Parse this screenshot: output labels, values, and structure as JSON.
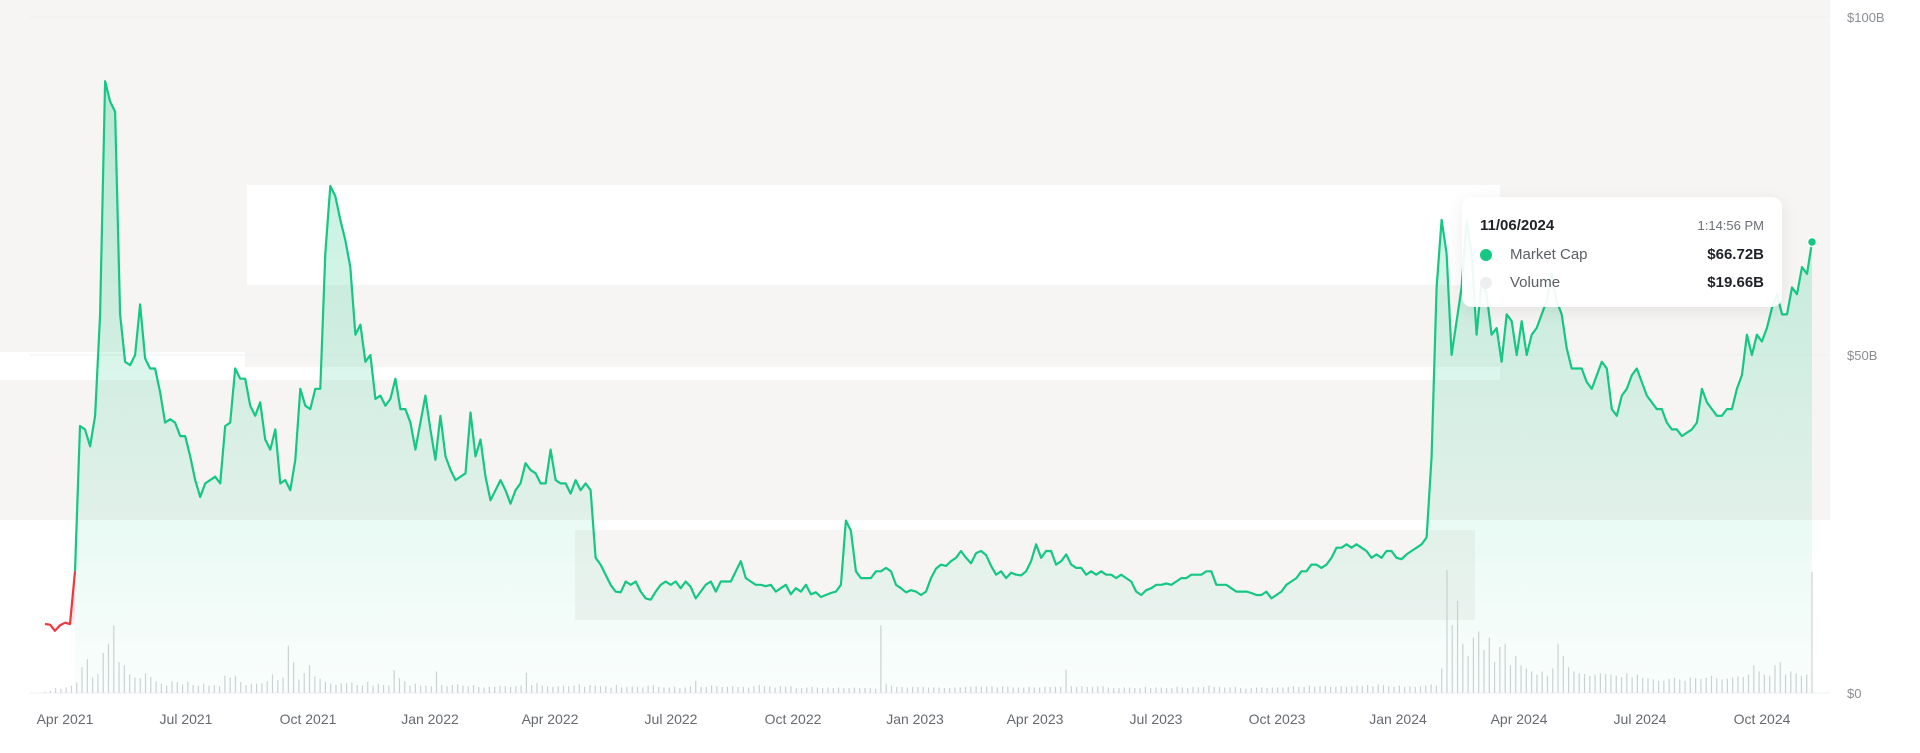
{
  "colors": {
    "market_cap": "#16c784",
    "below_start": "#ea3943",
    "volume": "#cfd2d6",
    "grid": "#eeeff1",
    "band": "#f6f5f4"
  },
  "tooltip": {
    "date": "11/06/2024",
    "time": "1:14:56 PM",
    "rows": [
      {
        "label": "Market Cap",
        "value": "$66.72B",
        "icon": "green-dot-icon"
      },
      {
        "label": "Volume",
        "value": "$19.66B",
        "icon": "grey-dot-icon"
      }
    ]
  },
  "chart_data": {
    "type": "area",
    "y_axis": {
      "ticks": [
        "$100B",
        "$50B",
        "$0"
      ],
      "ylim": [
        0,
        100
      ],
      "unit": "B USD",
      "position": "right"
    },
    "x_axis": {
      "ticks": [
        "Apr 2021",
        "Jul 2021",
        "Oct 2021",
        "Jan 2022",
        "Apr 2022",
        "Jul 2022",
        "Oct 2022",
        "Jan 2023",
        "Apr 2023",
        "Jul 2023",
        "Oct 2023",
        "Jan 2024",
        "Apr 2024",
        "Jul 2024",
        "Oct 2024"
      ]
    },
    "series": [
      {
        "name": "Market Cap",
        "values_B": [
          10.2,
          10.1,
          9.2,
          10.0,
          10.4,
          10.2,
          18,
          39.5,
          39,
          36.5,
          41,
          56,
          90.5,
          87.5,
          86,
          56,
          49,
          48.5,
          50,
          57.5,
          49.5,
          48,
          48,
          44.5,
          40,
          40.5,
          40,
          38,
          38,
          35,
          31.5,
          29,
          31,
          31.5,
          32,
          31,
          39.5,
          40,
          48,
          46.5,
          46.5,
          42.5,
          41,
          43,
          37.5,
          36,
          39,
          31,
          31.5,
          30,
          34.5,
          45,
          42.5,
          42,
          45,
          45,
          65,
          75,
          73.5,
          70,
          67,
          63,
          53,
          54.5,
          49,
          50,
          43.5,
          44,
          42.5,
          43.5,
          46.5,
          42,
          42,
          40,
          36,
          40,
          44,
          39,
          34.5,
          41,
          35,
          33,
          31.5,
          32,
          32.5,
          41.5,
          35,
          37.5,
          32,
          28.5,
          30,
          31.5,
          30,
          28,
          30,
          31,
          34,
          33,
          32.5,
          31,
          31,
          36,
          31.5,
          31,
          31,
          29.5,
          31.5,
          30,
          31,
          30,
          20,
          19,
          17.5,
          16,
          15,
          14.9,
          16.5,
          16,
          16.5,
          15,
          14,
          13.8,
          15,
          16,
          16.5,
          16,
          16.5,
          15.5,
          16.5,
          15.7,
          14,
          15,
          16,
          16.5,
          15,
          16.5,
          16.5,
          16.5,
          18,
          19.5,
          17,
          16.5,
          16,
          16,
          15.8,
          16,
          15,
          15.5,
          16,
          14.6,
          15.5,
          15,
          16,
          14.6,
          14.9,
          14.2,
          14.5,
          14.8,
          15,
          16,
          25.5,
          24,
          18,
          17,
          17,
          17,
          18,
          18,
          18.5,
          18,
          16,
          15.5,
          14.9,
          15.2,
          15,
          14.5,
          15,
          17,
          18.4,
          19,
          18.8,
          19.5,
          20,
          21,
          20,
          19.2,
          20.7,
          21,
          20.4,
          18.8,
          17.5,
          18,
          17,
          17.8,
          17.5,
          17.4,
          18,
          19.5,
          22,
          20,
          21,
          21,
          19,
          19.5,
          20.5,
          19,
          18.5,
          18.5,
          17.5,
          18,
          17.5,
          18,
          17.5,
          17.5,
          17,
          17.5,
          17,
          16.5,
          15,
          14.5,
          15.2,
          15.5,
          16,
          16,
          16.2,
          16,
          16.5,
          17,
          17,
          17.5,
          17.5,
          17.5,
          18,
          18,
          16,
          16,
          16,
          15.5,
          15,
          15,
          15,
          14.8,
          14.5,
          14.5,
          15,
          14,
          14.5,
          15,
          16,
          16.5,
          17,
          18,
          18,
          19,
          19,
          18.5,
          19,
          20,
          21.5,
          21.5,
          22,
          21.5,
          22,
          21.5,
          21,
          20,
          20.5,
          20,
          21,
          21,
          20,
          19.8,
          20.5,
          21,
          21.5,
          22,
          23,
          35,
          60,
          70,
          65,
          50,
          55,
          60,
          70,
          65,
          53,
          61,
          59,
          53,
          54,
          49,
          56,
          55,
          50,
          55,
          50,
          53,
          54,
          56,
          58,
          62,
          58,
          56,
          51,
          48,
          48,
          48,
          46,
          45,
          47,
          49,
          48,
          42,
          41,
          44,
          45,
          47,
          48,
          46,
          44,
          43,
          42,
          42,
          40,
          39,
          39,
          38,
          38.5,
          39,
          40,
          45,
          43,
          42,
          41,
          41,
          42,
          42,
          45,
          47,
          53,
          50,
          53,
          52,
          54,
          57,
          59,
          56,
          56,
          60,
          59,
          63,
          62,
          66.72
        ],
        "color": "#16c784"
      },
      {
        "name": "Volume",
        "bars_B": [
          0.2,
          0.4,
          0.8,
          0.7,
          0.9,
          1.2,
          1.7,
          4.2,
          5.5,
          2.5,
          3.1,
          6.5,
          8,
          11,
          5,
          4.5,
          3,
          2.5,
          2.4,
          3.2,
          2.6,
          1.9,
          1.5,
          1.2,
          1.9,
          1.8,
          1.4,
          1.8,
          1.3,
          1.2,
          1.5,
          1.2,
          1.3,
          1.1,
          2.8,
          2.5,
          2.8,
          1.8,
          1.3,
          1.5,
          1.5,
          1.6,
          1.9,
          3.0,
          2.1,
          2.5,
          7.7,
          5.0,
          2.2,
          3.2,
          4.5,
          2.7,
          2.3,
          1.8,
          1.5,
          1.3,
          1.6,
          1.6,
          1.7,
          1.3,
          1.2,
          1.8,
          1.2,
          1.5,
          1.3,
          1.2,
          3.7,
          2.4,
          1.9,
          1.2,
          1.5,
          1.2,
          1.2,
          1.1,
          3.5,
          1.3,
          1.1,
          1.3,
          1.4,
          1.2,
          1.1,
          1.3,
          1.0,
          0.9,
          1.0,
          1.0,
          1.2,
          1.1,
          1.0,
          1.1,
          1.2,
          3.3,
          1.3,
          1.6,
          1.2,
          1.1,
          1.0,
          1.1,
          1.2,
          1.1,
          1.2,
          1.4,
          1.0,
          1.3,
          1.2,
          1.1,
          1.1,
          0.9,
          1.3,
          0.9,
          1.0,
          1.1,
          1.0,
          0.9,
          1.2,
          1.3,
          1.0,
          0.9,
          0.9,
          1.0,
          0.8,
          0.9,
          1.1,
          2.0,
          1.0,
          1.0,
          1.2,
          1.1,
          1.0,
          1.0,
          1.1,
          1.0,
          1.0,
          0.9,
          1.1,
          1.3,
          1.1,
          1.1,
          0.9,
          1.1,
          1.0,
          1.1,
          0.8,
          0.8,
          0.9,
          1.0,
          0.9,
          0.8,
          0.9,
          0.8,
          0.9,
          0.8,
          0.8,
          0.9,
          0.8,
          0.8,
          0.8,
          0.7,
          11.0,
          1.5,
          1.2,
          1.0,
          1.0,
          0.9,
          1.0,
          1.0,
          1.0,
          0.9,
          0.9,
          0.9,
          0.8,
          0.8,
          0.9,
          0.9,
          1.0,
          1.0,
          1.1,
          1.0,
          1.0,
          1.1,
          0.9,
          1.1,
          1.0,
          0.9,
          0.9,
          0.9,
          1.0,
          0.9,
          0.9,
          1.0,
          1.0,
          1.0,
          1.0,
          3.8,
          1.1,
          1.0,
          1.1,
          1.0,
          1.0,
          1.1,
          1.1,
          0.9,
          0.8,
          0.8,
          0.9,
          0.9,
          0.8,
          0.8,
          1.0,
          0.8,
          0.9,
          0.9,
          0.8,
          0.8,
          1.0,
          0.9,
          0.8,
          1.0,
          0.9,
          1.0,
          1.2,
          1.0,
          1.0,
          0.9,
          0.9,
          1.0,
          0.8,
          0.7,
          0.8,
          0.9,
          0.9,
          0.8,
          0.9,
          0.9,
          0.9,
          1.0,
          1.1,
          1.0,
          1.0,
          1.2,
          1.0,
          1.1,
          1.1,
          1.0,
          1.0,
          1.1,
          1.0,
          1.1,
          1.2,
          1.1,
          1.3,
          1.1,
          1.4,
          1.3,
          1.1,
          1.0,
          1.2,
          1.0,
          1.1,
          1.0,
          1.1,
          1.2,
          1.4,
          1.2,
          4.0,
          20.0,
          11.0,
          15.0,
          8.0,
          6.0,
          9.0,
          10.0,
          7.0,
          9.0,
          5.0,
          7.5,
          8.0,
          4.5,
          6.0,
          4.5,
          4.0,
          3.5,
          3.0,
          3.5,
          2.8,
          4.0,
          8.0,
          6.0,
          4.2,
          3.5,
          3.2,
          3.1,
          2.8,
          3.0,
          3.2,
          3.1,
          3.0,
          2.8,
          2.6,
          3.2,
          2.5,
          3.0,
          2.5,
          2.4,
          2.2,
          2.0,
          2.0,
          2.3,
          2.5,
          2.2,
          2.0,
          2.5,
          2.4,
          2.3,
          2.5,
          2.8,
          2.4,
          2.2,
          2.3,
          2.5,
          2.7,
          2.6,
          3.0,
          4.5,
          3.5,
          3.0,
          2.8,
          4.5,
          5.0,
          3.0,
          3.5,
          3.2,
          2.8,
          3.0,
          19.66
        ]
      }
    ]
  }
}
